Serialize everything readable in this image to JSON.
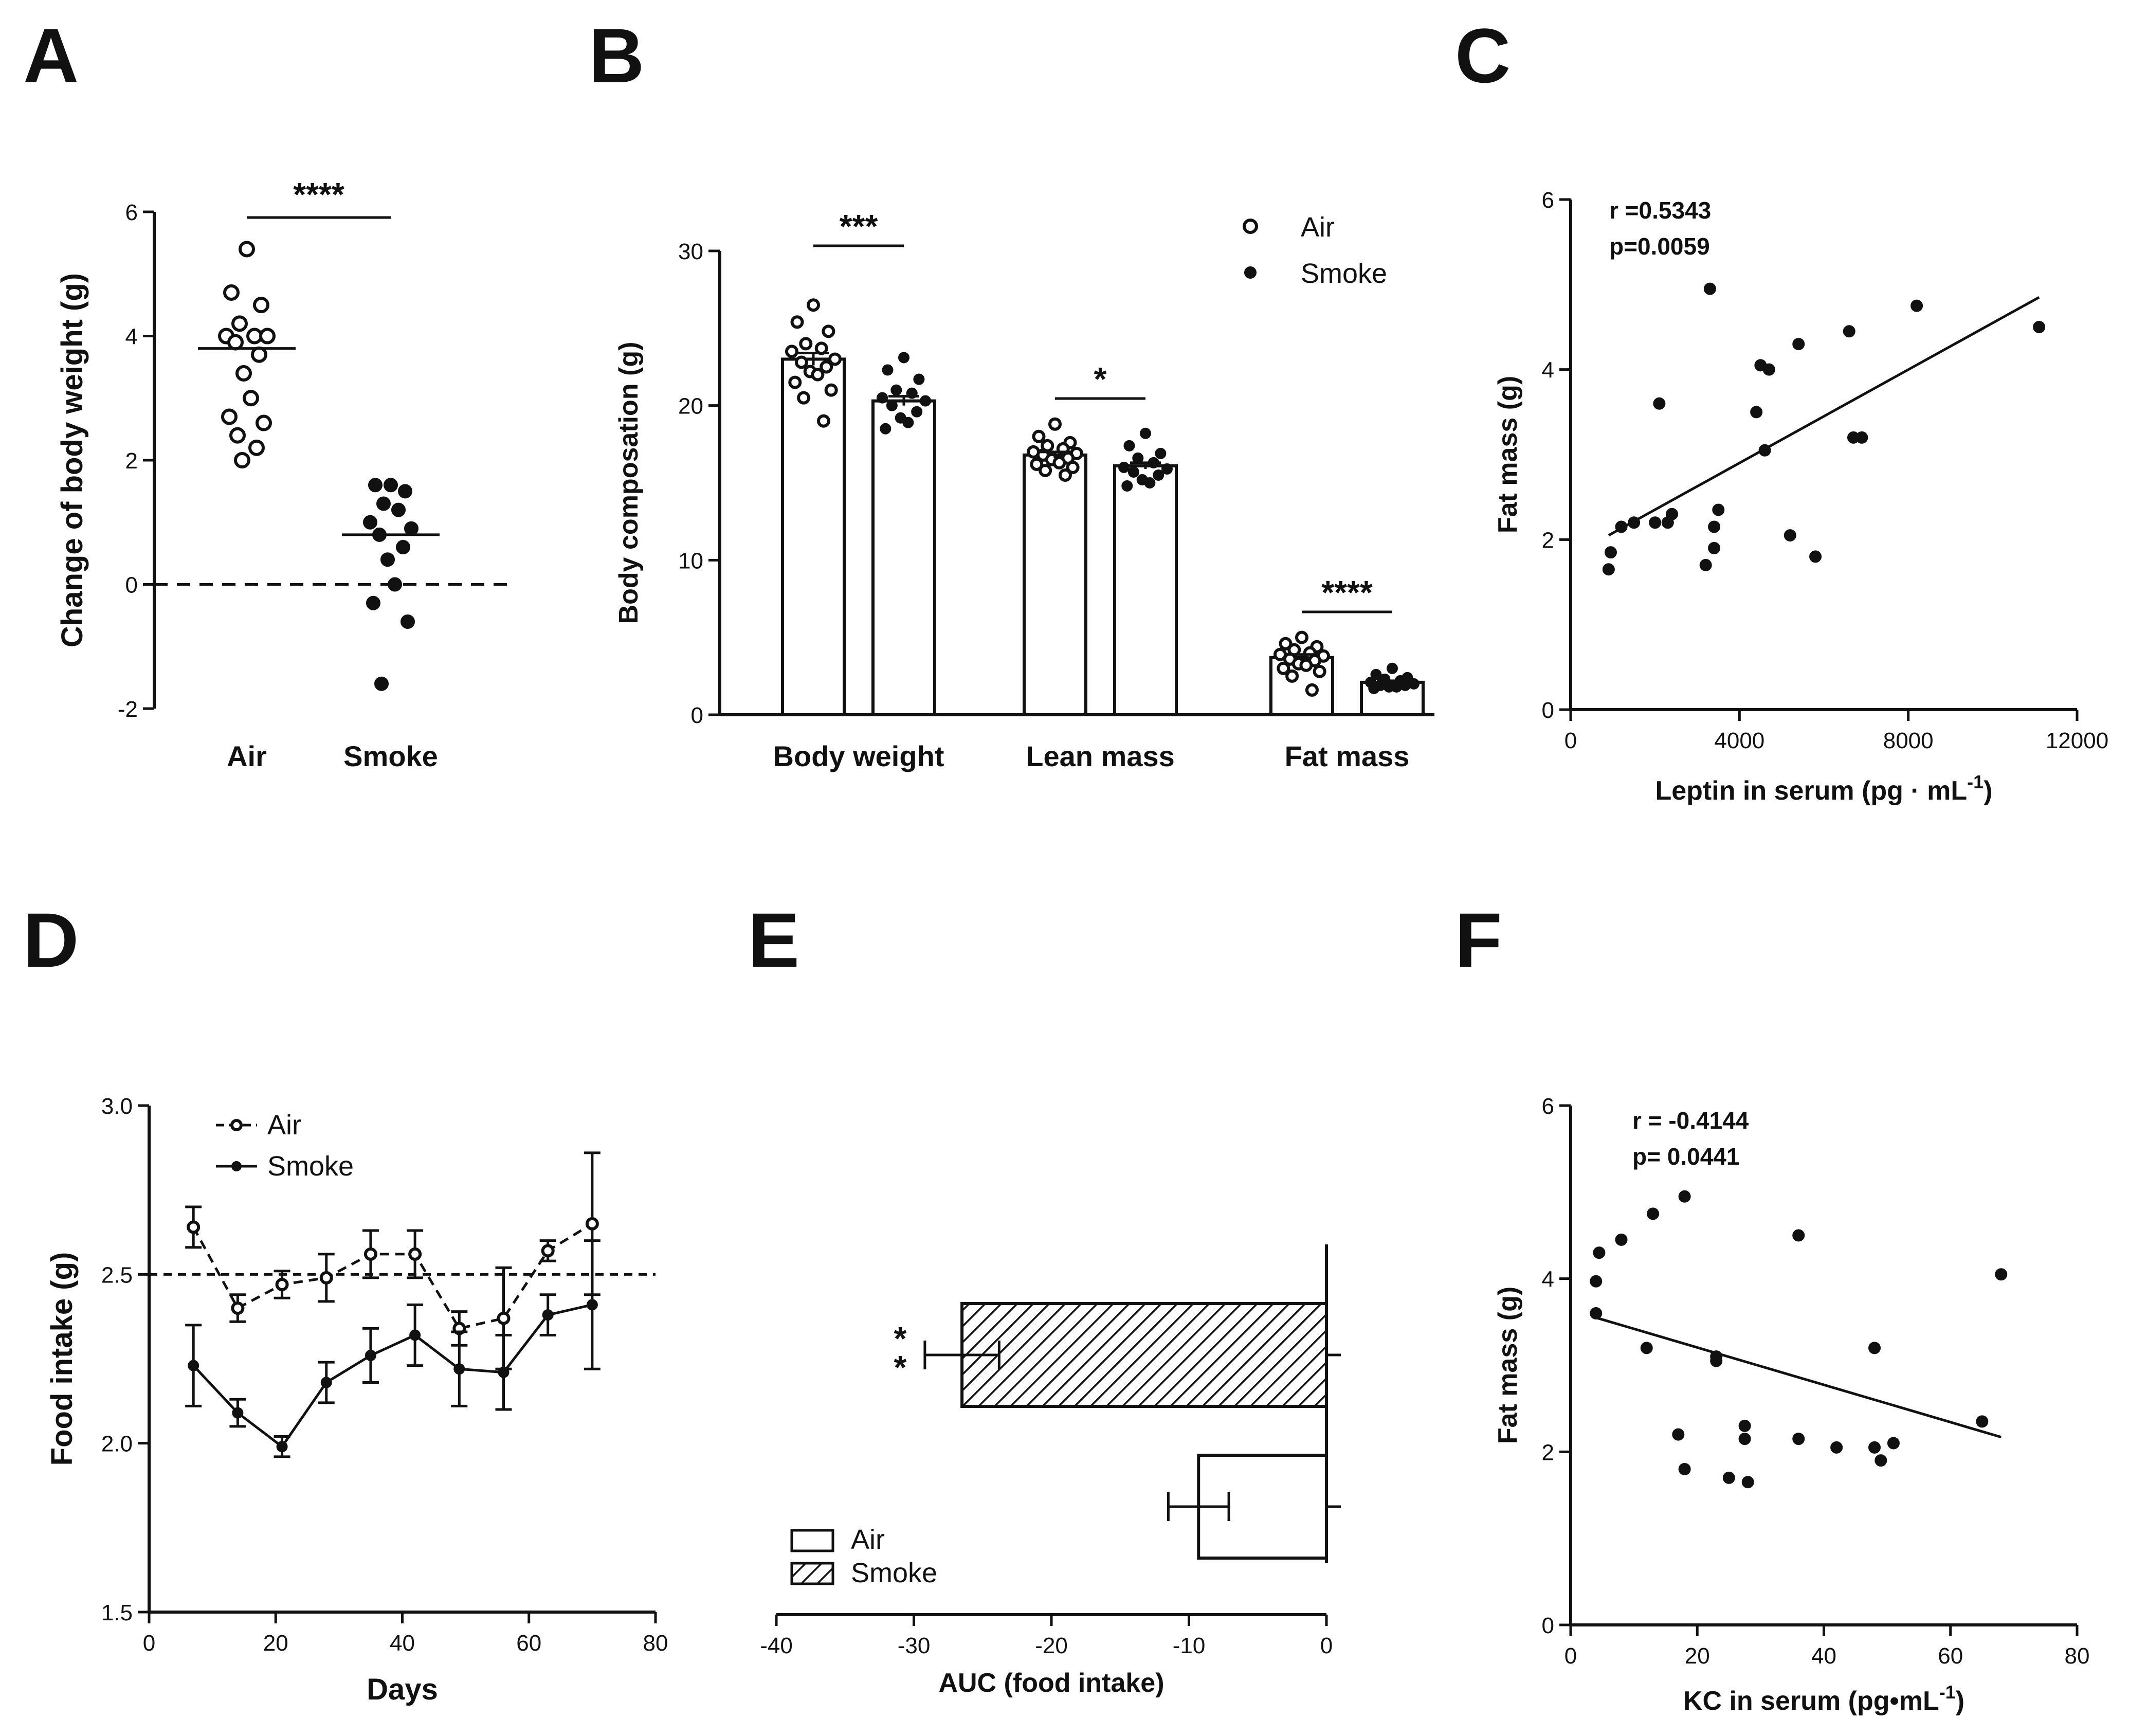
{
  "panels": {
    "A": "A",
    "B": "B",
    "C": "C",
    "D": "D",
    "E": "E",
    "F": "F"
  },
  "chart_data": [
    {
      "id": "A",
      "type": "scatter",
      "title": "",
      "xlabel": "",
      "ylabel": "Change of body weight (g)",
      "ylim": [
        -2,
        6
      ],
      "yticks": [
        "-2",
        "0",
        "2",
        "4",
        "6"
      ],
      "categories": [
        "Air",
        "Smoke"
      ],
      "series": [
        {
          "name": "Air",
          "marker": "open",
          "mean": 3.8,
          "values": [
            5.4,
            4.7,
            4.5,
            4.2,
            4.0,
            4.0,
            4.0,
            3.9,
            3.7,
            3.4,
            3.0,
            2.7,
            2.6,
            2.4,
            2.2,
            2.0
          ]
        },
        {
          "name": "Smoke",
          "marker": "filled",
          "mean": 0.8,
          "values": [
            1.6,
            1.6,
            1.5,
            1.3,
            1.2,
            1.0,
            0.9,
            0.8,
            0.6,
            0.4,
            0.0,
            -0.3,
            -0.6,
            -1.6
          ]
        }
      ],
      "reference_line": 0,
      "significance": "****"
    },
    {
      "id": "B",
      "type": "bar",
      "title": "",
      "xlabel": "",
      "ylabel": "Body composation (g)",
      "ylim": [
        0,
        30
      ],
      "yticks": [
        "0",
        "10",
        "20",
        "30"
      ],
      "categories": [
        "Body weight",
        "Lean mass",
        "Fat mass"
      ],
      "series": [
        {
          "name": "Air",
          "marker": "open",
          "values": [
            23.0,
            16.8,
            3.7
          ],
          "sem": [
            0.4,
            0.2,
            0.2
          ],
          "points": [
            [
              26.5,
              25.4,
              24.8,
              24.0,
              23.7,
              23.5,
              23.0,
              22.8,
              22.5,
              22.2,
              22.0,
              21.5,
              21.0,
              20.5,
              19.0
            ],
            [
              18.8,
              18.0,
              17.6,
              17.4,
              17.2,
              17.0,
              16.9,
              16.8,
              16.6,
              16.5,
              16.3,
              16.2,
              16.0,
              15.8,
              15.5
            ],
            [
              5.0,
              4.6,
              4.4,
              4.2,
              4.0,
              3.9,
              3.8,
              3.6,
              3.5,
              3.3,
              3.2,
              3.0,
              2.8,
              2.5,
              1.6
            ]
          ]
        },
        {
          "name": "Smoke",
          "marker": "filled",
          "values": [
            20.3,
            16.1,
            2.1
          ],
          "sem": [
            0.3,
            0.2,
            0.1
          ],
          "points": [
            [
              23.1,
              22.3,
              21.7,
              21.0,
              20.8,
              20.5,
              20.3,
              20.0,
              19.6,
              19.2,
              18.9,
              18.5
            ],
            [
              18.2,
              17.4,
              16.9,
              16.6,
              16.3,
              16.0,
              15.9,
              15.7,
              15.5,
              15.2,
              15.0,
              14.8
            ],
            [
              3.0,
              2.6,
              2.4,
              2.3,
              2.2,
              2.1,
              2.0,
              1.9,
              1.9,
              1.8,
              1.8,
              1.7
            ]
          ]
        }
      ],
      "significance": [
        "***",
        "*",
        "****"
      ],
      "legend": "top-right"
    },
    {
      "id": "C",
      "type": "scatter",
      "title": "",
      "xlabel": "Leptin in serum (pg · mL",
      "xlabel_sup": "-1",
      "xlabel_end": ")",
      "ylabel": "Fat mass (g)",
      "xlim": [
        0,
        12000
      ],
      "ylim": [
        0,
        6
      ],
      "xticks": [
        "0",
        "4000",
        "8000",
        "12000"
      ],
      "yticks": [
        "0",
        "2",
        "4",
        "6"
      ],
      "stats": {
        "r": "r =0.5343",
        "p": "p=0.0059"
      },
      "x": [
        900,
        950,
        1200,
        1500,
        2000,
        2100,
        2300,
        2400,
        3200,
        3300,
        3400,
        3400,
        3500,
        4400,
        4500,
        4600,
        4700,
        5200,
        5400,
        5800,
        6600,
        6700,
        6900,
        8200,
        11100
      ],
      "y": [
        1.65,
        1.85,
        2.15,
        2.2,
        2.2,
        3.6,
        2.2,
        2.3,
        1.7,
        4.95,
        2.15,
        1.9,
        2.35,
        3.5,
        4.05,
        3.05,
        4.0,
        2.05,
        4.3,
        1.8,
        4.45,
        3.2,
        3.2,
        4.75,
        4.5
      ],
      "fit": {
        "x": [
          900,
          11100
        ],
        "y": [
          2.05,
          4.85
        ]
      }
    },
    {
      "id": "D",
      "type": "line",
      "title": "",
      "xlabel": "Days",
      "ylabel": "Food intake (g)",
      "xlim": [
        0,
        80
      ],
      "ylim": [
        1.5,
        3.0
      ],
      "xticks": [
        "0",
        "20",
        "40",
        "60",
        "80"
      ],
      "yticks": [
        "1.5",
        "2.0",
        "2.5",
        "3.0"
      ],
      "x": [
        7,
        14,
        21,
        28,
        35,
        42,
        49,
        56,
        63,
        70
      ],
      "series": [
        {
          "name": "Air",
          "style": "dashed-open",
          "values": [
            2.64,
            2.4,
            2.47,
            2.49,
            2.56,
            2.56,
            2.34,
            2.37,
            2.57,
            2.65
          ],
          "err": [
            0.06,
            0.04,
            0.04,
            0.07,
            0.07,
            0.07,
            0.05,
            0.15,
            0.03,
            0.21
          ]
        },
        {
          "name": "Smoke",
          "style": "solid-filled",
          "values": [
            2.23,
            2.09,
            1.99,
            2.18,
            2.26,
            2.32,
            2.22,
            2.21,
            2.38,
            2.41
          ],
          "err": [
            0.12,
            0.04,
            0.03,
            0.06,
            0.08,
            0.09,
            0.11,
            0.11,
            0.06,
            0.19
          ]
        }
      ],
      "reference_line": 2.5,
      "legend": "top-left"
    },
    {
      "id": "E",
      "type": "bar",
      "orientation": "horizontal",
      "title": "",
      "xlabel": "AUC (food intake)",
      "ylabel": "",
      "xlim": [
        -40,
        0
      ],
      "xticks": [
        "-40",
        "-30",
        "-20",
        "-10",
        "0"
      ],
      "categories": [
        "Smoke",
        "Air"
      ],
      "series": [
        {
          "name": "Smoke",
          "pattern": "hatched",
          "value": -26.5,
          "err": 2.7,
          "significance": "*\n*"
        },
        {
          "name": "Air",
          "pattern": "open",
          "value": -9.3,
          "err": 2.2
        }
      ],
      "legend": "bottom-left"
    },
    {
      "id": "F",
      "type": "scatter",
      "title": "",
      "xlabel": "KC in serum (pg•mL",
      "xlabel_sup": "-1",
      "xlabel_end": ")",
      "ylabel": "Fat mass (g)",
      "xlim": [
        0,
        80
      ],
      "ylim": [
        0,
        6
      ],
      "xticks": [
        "0",
        "20",
        "40",
        "60",
        "80"
      ],
      "yticks": [
        "0",
        "2",
        "4",
        "6"
      ],
      "stats": {
        "r": "r = -0.4144",
        "p": "p= 0.0441"
      },
      "x": [
        4,
        4,
        4.5,
        8,
        12,
        13,
        17,
        18,
        18,
        23,
        23,
        25,
        27.5,
        27.5,
        28,
        36,
        36,
        42,
        48,
        48,
        49,
        51,
        65,
        68
      ],
      "y": [
        3.6,
        3.97,
        4.3,
        4.45,
        3.2,
        4.75,
        2.2,
        4.95,
        1.8,
        3.1,
        3.05,
        1.7,
        2.3,
        2.15,
        1.65,
        2.15,
        4.5,
        2.05,
        3.2,
        2.05,
        1.9,
        2.1,
        2.35,
        4.05
      ],
      "fit": {
        "x": [
          4,
          68
        ],
        "y": [
          3.55,
          2.17
        ]
      }
    }
  ]
}
